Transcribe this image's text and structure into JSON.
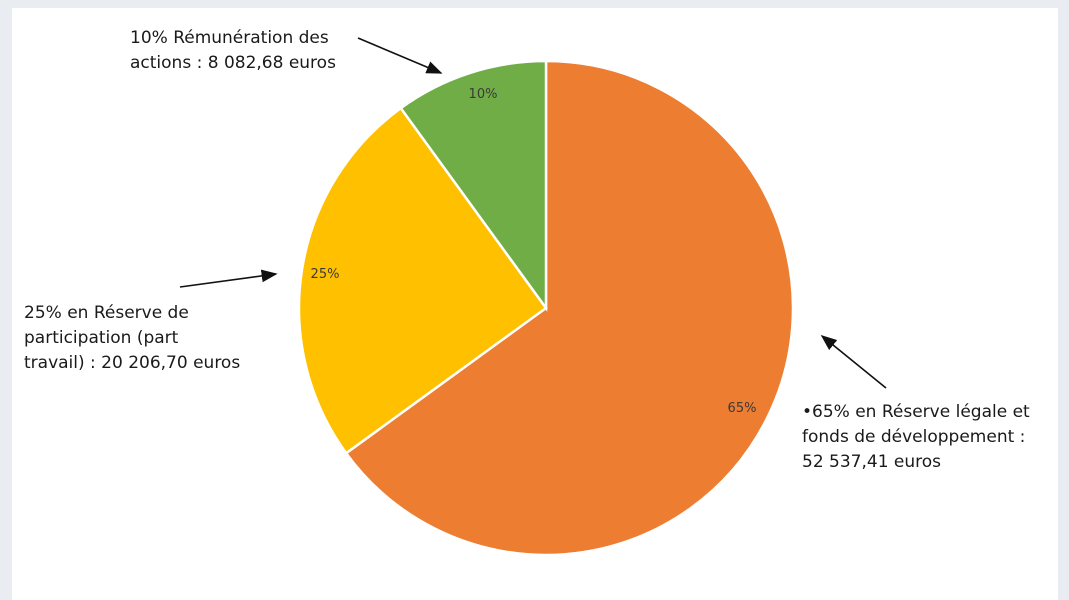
{
  "chart_data": {
    "type": "pie",
    "title": "",
    "slices": [
      {
        "label_pct": "65%",
        "value": 65,
        "color": "#ED7D31",
        "callout": "•65% en Réserve légale et\nfonds de développement :\n52 537,41 euros"
      },
      {
        "label_pct": "25%",
        "value": 25,
        "color": "#FFC000",
        "callout": "25% en Réserve de\nparticipation (part\ntravail) : 20 206,70 euros"
      },
      {
        "label_pct": "10%",
        "value": 10,
        "color": "#70AD47",
        "callout": "10% Rémunération des\nactions : 8 082,68 euros"
      }
    ],
    "start_angle_deg": 0,
    "direction": "clockwise"
  }
}
